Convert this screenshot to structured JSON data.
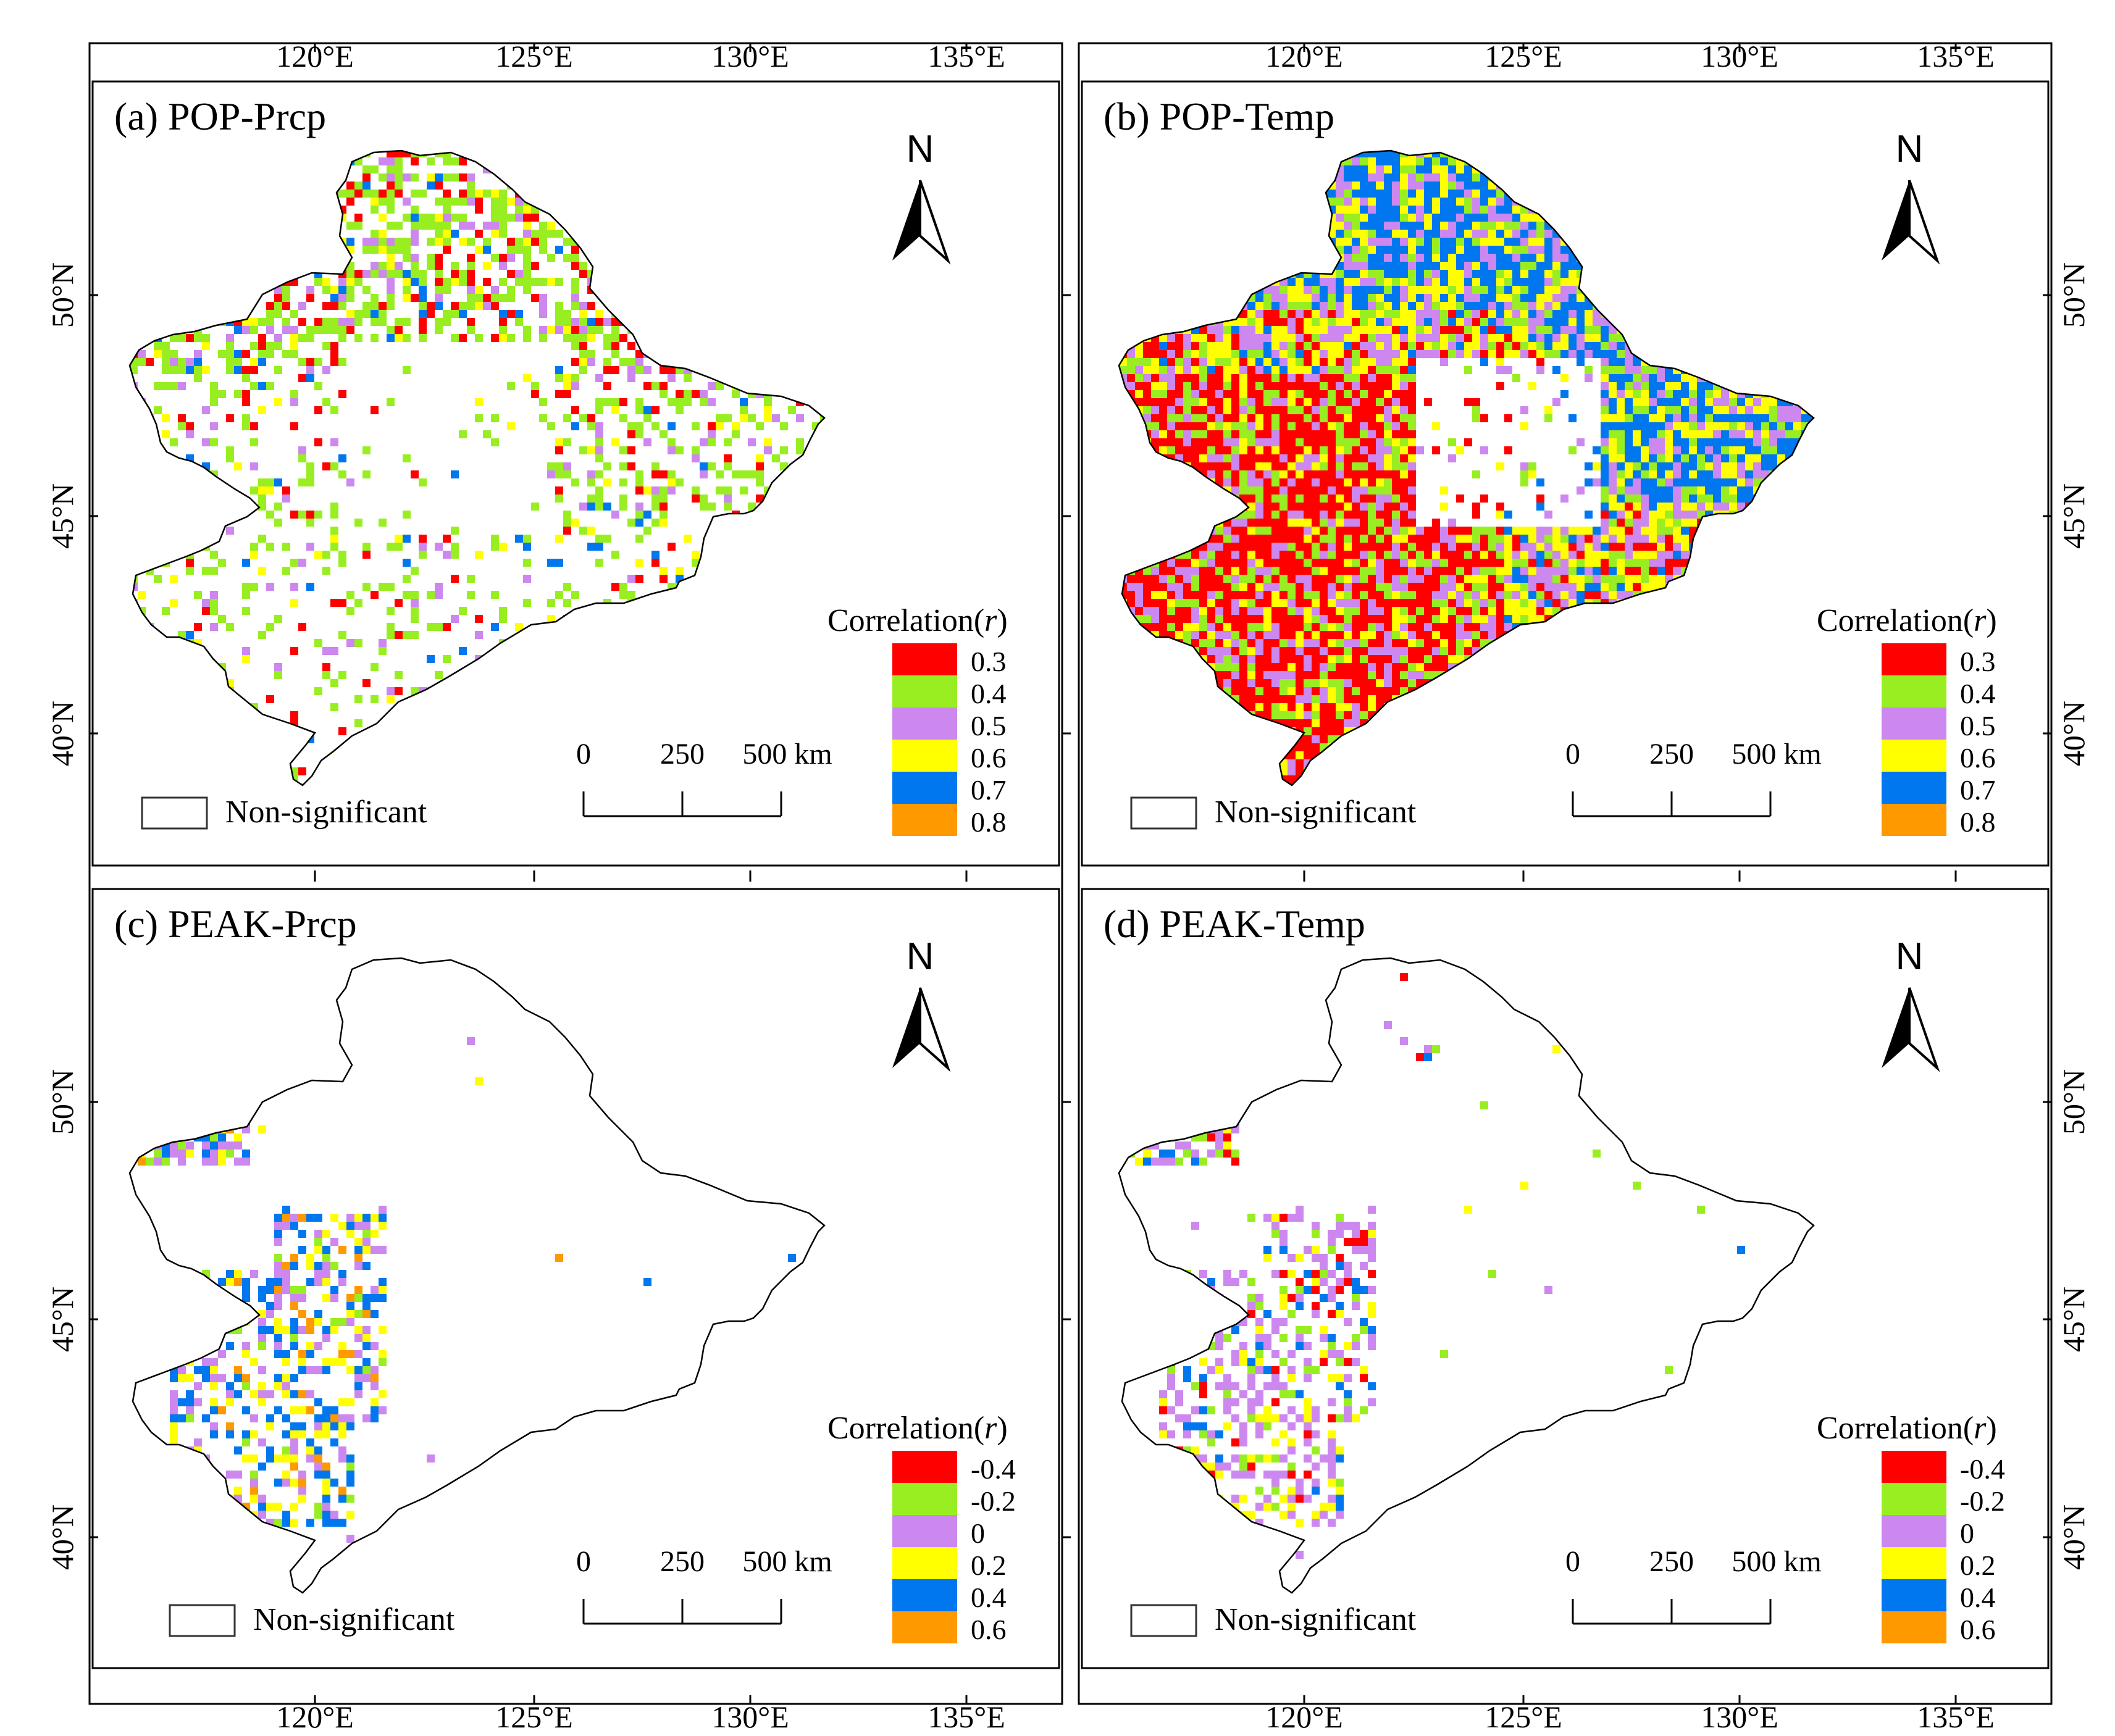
{
  "figure": {
    "lon_labels": [
      "120°E",
      "125°E",
      "130°E",
      "135°E"
    ],
    "lat_labels": [
      "50°N",
      "45°N",
      "40°N"
    ],
    "colors": {
      "c1": "#ff0000",
      "c2": "#99ee22",
      "c3": "#cc88ee",
      "c4": "#ffff00",
      "c5": "#0077ee",
      "c6": "#ff9900"
    }
  },
  "panels": [
    {
      "title": "(a) POP-Prcp",
      "legend_title": "Correlation(r)",
      "legend_labels": [
        "0.3",
        "0.4",
        "0.5",
        "0.6",
        "0.7",
        "0.8"
      ],
      "nonsig_label": "Non-significant",
      "north_label": "N",
      "scale": {
        "s0": "0",
        "s1": "250",
        "s2": "500 km"
      }
    },
    {
      "title": "(b) POP-Temp",
      "legend_title": "Correlation(r)",
      "legend_labels": [
        "0.3",
        "0.4",
        "0.5",
        "0.6",
        "0.7",
        "0.8"
      ],
      "nonsig_label": "Non-significant",
      "north_label": "N",
      "scale": {
        "s0": "0",
        "s1": "250",
        "s2": "500 km"
      }
    },
    {
      "title": "(c) PEAK-Prcp",
      "legend_title": "Correlation(r)",
      "legend_labels": [
        "-0.4",
        "-0.2",
        "0",
        "0.2",
        "0.4",
        "0.6"
      ],
      "nonsig_label": "Non-significant",
      "north_label": "N",
      "scale": {
        "s0": "0",
        "s1": "250",
        "s2": "500 km"
      }
    },
    {
      "title": "(d) PEAK-Temp",
      "legend_title": "Correlation(r)",
      "legend_labels": [
        "-0.4",
        "-0.2",
        "0",
        "0.2",
        "0.4",
        "0.6"
      ],
      "nonsig_label": "Non-significant",
      "north_label": "N",
      "scale": {
        "s0": "0",
        "s1": "250",
        "s2": "500 km"
      }
    }
  ]
}
